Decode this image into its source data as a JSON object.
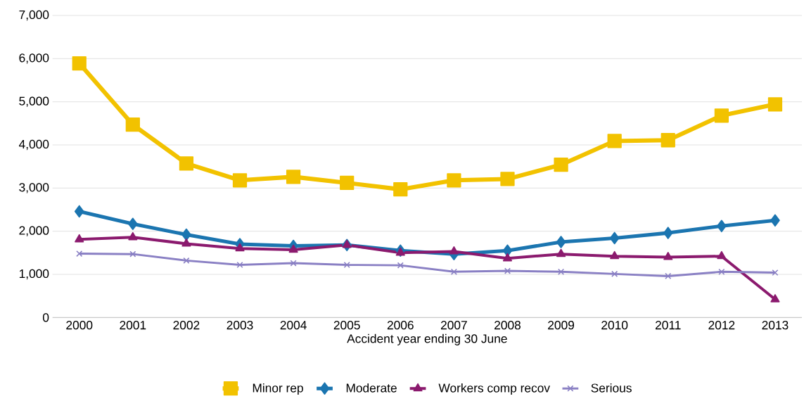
{
  "chart_data": {
    "type": "line",
    "xlabel": "Accident year ending 30 June",
    "categories": [
      "2000",
      "2001",
      "2002",
      "2003",
      "2004",
      "2005",
      "2006",
      "2007",
      "2008",
      "2009",
      "2010",
      "2011",
      "2012",
      "2013"
    ],
    "series": [
      {
        "name": "Minor rep",
        "color": "#f2c200",
        "marker": "square",
        "values": [
          5890,
          4470,
          3570,
          3180,
          3260,
          3120,
          2970,
          3180,
          3210,
          3540,
          4090,
          4110,
          4680,
          4940
        ]
      },
      {
        "name": "Moderate",
        "color": "#1b75b0",
        "marker": "diamond",
        "values": [
          2460,
          2170,
          1920,
          1700,
          1660,
          1680,
          1550,
          1470,
          1550,
          1750,
          1840,
          1960,
          2120,
          2250
        ]
      },
      {
        "name": "Workers comp recov",
        "color": "#8b1a6e",
        "marker": "triangle",
        "values": [
          1810,
          1860,
          1710,
          1600,
          1570,
          1680,
          1500,
          1530,
          1370,
          1470,
          1420,
          1400,
          1420,
          420
        ]
      },
      {
        "name": "Serious",
        "color": "#8a80c4",
        "marker": "cross",
        "values": [
          1480,
          1470,
          1320,
          1220,
          1260,
          1220,
          1210,
          1060,
          1080,
          1060,
          1010,
          960,
          1060,
          1040
        ]
      }
    ],
    "ylim": [
      0,
      7000
    ],
    "yticks": [
      0,
      {
        "value": 1000,
        "label": "1,000"
      },
      {
        "value": 2000,
        "label": "2,000"
      },
      {
        "value": 3000,
        "label": "3,000"
      },
      {
        "value": 4000,
        "label": "4,000"
      },
      {
        "value": 5000,
        "label": "5,000"
      },
      {
        "value": 6000,
        "label": "6,000"
      },
      {
        "value": 7000,
        "label": "7,000"
      }
    ],
    "grid": "y",
    "legend": "bottom",
    "line_style": "solid"
  }
}
